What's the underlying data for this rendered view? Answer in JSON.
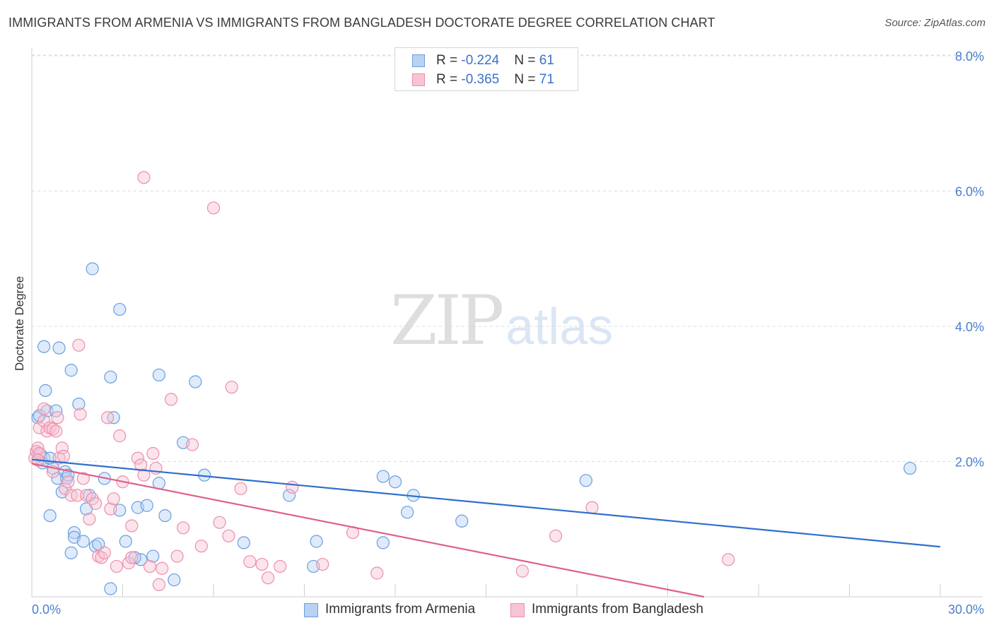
{
  "header": {
    "title": "IMMIGRANTS FROM ARMENIA VS IMMIGRANTS FROM BANGLADESH DOCTORATE DEGREE CORRELATION CHART",
    "source": "Source: ZipAtlas.com"
  },
  "watermark": {
    "zip": "ZIP",
    "atlas": "atlas"
  },
  "legend_top": [
    {
      "r_label": "R = ",
      "r_value": "-0.224",
      "n_label": "N = ",
      "n_value": "61"
    },
    {
      "r_label": "R = ",
      "r_value": "-0.365",
      "n_label": "N = ",
      "n_value": "71"
    }
  ],
  "chart_data": {
    "type": "scatter",
    "title": "IMMIGRANTS FROM ARMENIA VS IMMIGRANTS FROM BANGLADESH DOCTORATE DEGREE CORRELATION CHART",
    "xlabel": "",
    "ylabel": "Doctorate Degree",
    "xlim": [
      0,
      30
    ],
    "ylim": [
      0,
      8.4
    ],
    "x_tick_labels": [
      {
        "value": 0,
        "label": "0.0%"
      },
      {
        "value": 30,
        "label": "30.0%"
      }
    ],
    "y_tick_labels": [
      {
        "value": 2,
        "label": "2.0%"
      },
      {
        "value": 4,
        "label": "4.0%"
      },
      {
        "value": 6,
        "label": "6.0%"
      },
      {
        "value": 8,
        "label": "8.0%"
      }
    ],
    "legend_placement": "top-center",
    "series": [
      {
        "name": "Immigrants from Armenia",
        "color": "#6a9ee0",
        "fill": "#b9d2f3",
        "r": -0.224,
        "n": 61,
        "trend": {
          "x": [
            0,
            30
          ],
          "y": [
            2.03,
            0.74
          ]
        },
        "points": [
          [
            0.2,
            2.65
          ],
          [
            0.15,
            2.15
          ],
          [
            0.3,
            2.1
          ],
          [
            0.4,
            2.05
          ],
          [
            0.35,
            1.98
          ],
          [
            0.5,
            2.75
          ],
          [
            0.45,
            3.05
          ],
          [
            0.4,
            3.7
          ],
          [
            0.6,
            1.2
          ],
          [
            0.7,
            1.9
          ],
          [
            0.8,
            2.75
          ],
          [
            0.9,
            3.68
          ],
          [
            0.85,
            1.75
          ],
          [
            1.0,
            1.55
          ],
          [
            1.1,
            1.85
          ],
          [
            1.15,
            1.75
          ],
          [
            1.2,
            1.8
          ],
          [
            1.3,
            3.35
          ],
          [
            1.3,
            0.65
          ],
          [
            1.4,
            0.95
          ],
          [
            1.4,
            0.88
          ],
          [
            1.55,
            2.85
          ],
          [
            1.7,
            0.82
          ],
          [
            1.8,
            1.3
          ],
          [
            1.9,
            1.5
          ],
          [
            2.0,
            4.85
          ],
          [
            2.1,
            0.75
          ],
          [
            2.2,
            0.78
          ],
          [
            2.4,
            1.75
          ],
          [
            2.6,
            3.25
          ],
          [
            2.6,
            0.12
          ],
          [
            2.7,
            2.65
          ],
          [
            2.9,
            4.25
          ],
          [
            2.9,
            1.28
          ],
          [
            3.1,
            0.82
          ],
          [
            3.5,
            1.32
          ],
          [
            3.6,
            0.55
          ],
          [
            3.8,
            1.35
          ],
          [
            4.0,
            0.6
          ],
          [
            4.2,
            3.28
          ],
          [
            4.2,
            1.68
          ],
          [
            4.4,
            1.2
          ],
          [
            4.7,
            0.25
          ],
          [
            5.0,
            2.28
          ],
          [
            5.4,
            3.18
          ],
          [
            5.7,
            1.8
          ],
          [
            7.0,
            0.8
          ],
          [
            8.5,
            1.5
          ],
          [
            9.3,
            0.45
          ],
          [
            9.4,
            0.82
          ],
          [
            11.6,
            0.8
          ],
          [
            11.6,
            1.78
          ],
          [
            12.0,
            1.7
          ],
          [
            12.4,
            1.25
          ],
          [
            12.6,
            1.5
          ],
          [
            14.2,
            1.12
          ],
          [
            18.3,
            1.72
          ],
          [
            29.0,
            1.9
          ],
          [
            0.25,
            2.68
          ],
          [
            0.6,
            2.05
          ],
          [
            3.4,
            0.58
          ]
        ]
      },
      {
        "name": "Immigrants from Bangladesh",
        "color": "#ec8fac",
        "fill": "#f7c4d3",
        "r": -0.365,
        "n": 71,
        "trend": {
          "x": [
            0,
            22.2
          ],
          "y": [
            1.97,
            0.0
          ]
        },
        "points": [
          [
            0.1,
            2.05
          ],
          [
            0.15,
            2.15
          ],
          [
            0.2,
            2.2
          ],
          [
            0.25,
            2.12
          ],
          [
            0.2,
            2.02
          ],
          [
            0.25,
            2.5
          ],
          [
            0.4,
            2.6
          ],
          [
            0.4,
            2.78
          ],
          [
            0.5,
            2.45
          ],
          [
            0.6,
            2.5
          ],
          [
            0.7,
            2.48
          ],
          [
            0.7,
            1.85
          ],
          [
            0.8,
            2.45
          ],
          [
            0.85,
            2.65
          ],
          [
            0.9,
            2.05
          ],
          [
            1.0,
            2.2
          ],
          [
            1.05,
            2.08
          ],
          [
            1.1,
            1.6
          ],
          [
            1.2,
            1.7
          ],
          [
            1.3,
            1.5
          ],
          [
            1.5,
            1.5
          ],
          [
            1.55,
            3.72
          ],
          [
            1.6,
            2.7
          ],
          [
            1.7,
            1.75
          ],
          [
            1.8,
            1.5
          ],
          [
            1.9,
            1.15
          ],
          [
            2.0,
            1.45
          ],
          [
            2.1,
            1.38
          ],
          [
            2.2,
            0.6
          ],
          [
            2.3,
            0.58
          ],
          [
            2.4,
            0.65
          ],
          [
            2.5,
            2.65
          ],
          [
            2.6,
            1.3
          ],
          [
            2.7,
            1.45
          ],
          [
            2.8,
            0.45
          ],
          [
            2.9,
            2.38
          ],
          [
            3.0,
            1.7
          ],
          [
            3.2,
            0.5
          ],
          [
            3.3,
            0.58
          ],
          [
            3.3,
            1.05
          ],
          [
            3.5,
            2.05
          ],
          [
            3.6,
            1.95
          ],
          [
            3.7,
            1.8
          ],
          [
            3.7,
            6.2
          ],
          [
            3.9,
            0.45
          ],
          [
            4.0,
            2.12
          ],
          [
            4.1,
            1.9
          ],
          [
            4.2,
            0.18
          ],
          [
            4.3,
            0.42
          ],
          [
            4.6,
            2.92
          ],
          [
            4.8,
            0.6
          ],
          [
            5.0,
            1.02
          ],
          [
            5.3,
            2.25
          ],
          [
            5.6,
            0.75
          ],
          [
            6.0,
            5.75
          ],
          [
            6.2,
            1.1
          ],
          [
            6.5,
            0.9
          ],
          [
            6.6,
            3.1
          ],
          [
            6.9,
            1.6
          ],
          [
            7.2,
            0.52
          ],
          [
            7.6,
            0.48
          ],
          [
            7.8,
            0.28
          ],
          [
            8.2,
            0.45
          ],
          [
            8.6,
            1.62
          ],
          [
            9.6,
            0.48
          ],
          [
            10.6,
            0.95
          ],
          [
            11.4,
            0.35
          ],
          [
            16.2,
            0.38
          ],
          [
            17.3,
            0.9
          ],
          [
            18.5,
            1.32
          ],
          [
            23.0,
            0.55
          ]
        ]
      }
    ]
  },
  "legend_bottom": [
    {
      "label": "Immigrants from Armenia"
    },
    {
      "label": "Immigrants from Bangladesh"
    }
  ],
  "colors": {
    "armenia_stroke": "#6a9ee0",
    "armenia_fill": "#b9d2f3",
    "armenia_trend": "#2f6fcc",
    "bangladesh_stroke": "#ec8fac",
    "bangladesh_fill": "#f7c4d3",
    "bangladesh_trend": "#e0608a"
  }
}
